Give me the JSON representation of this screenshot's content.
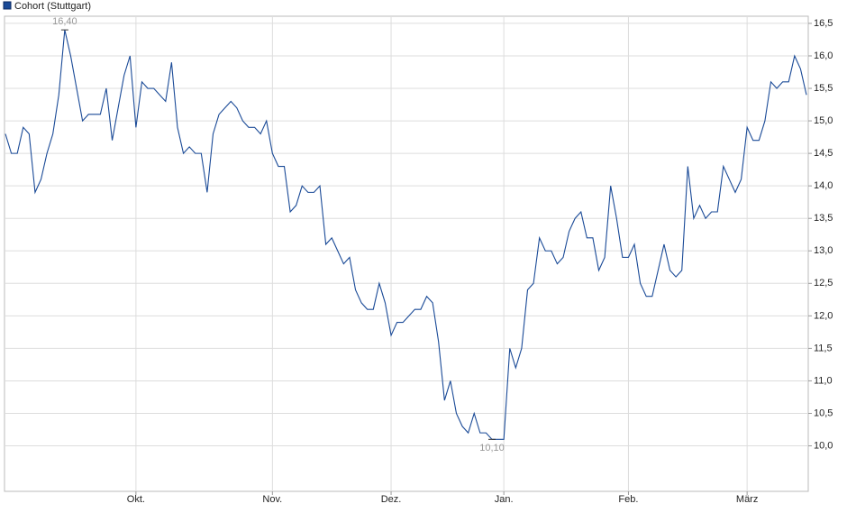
{
  "chart_data": {
    "type": "line",
    "categories": [
      null,
      null,
      null,
      null,
      null,
      null,
      null,
      null,
      null,
      null,
      null,
      null,
      null,
      null,
      null,
      null,
      null,
      null,
      null,
      null,
      null,
      null,
      "Okt.",
      null,
      null,
      null,
      null,
      null,
      null,
      null,
      null,
      null,
      null,
      null,
      null,
      null,
      null,
      null,
      null,
      null,
      null,
      null,
      null,
      null,
      null,
      "Nov.",
      null,
      null,
      null,
      null,
      null,
      null,
      null,
      null,
      null,
      null,
      null,
      null,
      null,
      null,
      null,
      null,
      null,
      null,
      null,
      "Dez.",
      null,
      null,
      null,
      null,
      null,
      null,
      null,
      null,
      null,
      null,
      null,
      null,
      null,
      null,
      null,
      null,
      null,
      null,
      "Jan.",
      null,
      null,
      null,
      null,
      null,
      null,
      null,
      null,
      null,
      null,
      null,
      null,
      null,
      null,
      null,
      null,
      null,
      null,
      null,
      null,
      "Feb.",
      null,
      null,
      null,
      null,
      null,
      null,
      null,
      null,
      null,
      null,
      null,
      null,
      null,
      null,
      null,
      null,
      null,
      null,
      null,
      "März",
      null,
      null,
      null,
      null,
      null,
      null,
      null,
      null,
      null,
      null
    ],
    "series": [
      {
        "name": "Cohort (Stuttgart)",
        "color": "#1a4a97",
        "values": [
          14.8,
          14.5,
          14.5,
          14.9,
          14.8,
          13.9,
          14.1,
          14.5,
          14.8,
          15.4,
          16.4,
          16.0,
          15.5,
          15.0,
          15.1,
          15.1,
          15.1,
          15.5,
          14.7,
          15.2,
          15.7,
          16.0,
          14.9,
          15.6,
          15.5,
          15.5,
          15.4,
          15.3,
          15.9,
          14.9,
          14.5,
          14.6,
          14.5,
          14.5,
          13.9,
          14.8,
          15.1,
          15.2,
          15.3,
          15.2,
          15.0,
          14.9,
          14.9,
          14.8,
          15.0,
          14.5,
          14.3,
          14.3,
          13.6,
          13.7,
          14.0,
          13.9,
          13.9,
          14.0,
          13.1,
          13.2,
          13.0,
          12.8,
          12.9,
          12.4,
          12.2,
          12.1,
          12.1,
          12.5,
          12.2,
          11.7,
          11.9,
          11.9,
          12.0,
          12.1,
          12.1,
          12.3,
          12.2,
          11.6,
          10.7,
          11.0,
          10.5,
          10.3,
          10.2,
          10.5,
          10.2,
          10.2,
          10.1,
          10.1,
          10.1,
          11.5,
          11.2,
          11.5,
          12.4,
          12.5,
          13.2,
          13.0,
          13.0,
          12.8,
          12.9,
          13.3,
          13.5,
          13.6,
          13.2,
          13.2,
          12.7,
          12.9,
          14.0,
          13.5,
          12.9,
          12.9,
          13.1,
          12.5,
          12.3,
          12.3,
          12.7,
          13.1,
          12.7,
          12.6,
          12.7,
          14.3,
          13.5,
          13.7,
          13.5,
          13.6,
          13.6,
          14.3,
          14.1,
          13.9,
          14.1,
          14.9,
          14.7,
          14.7,
          15.0,
          15.6,
          15.5,
          15.6,
          15.6,
          16.0,
          15.8,
          15.4
        ]
      }
    ],
    "annotations": [
      {
        "value": 16.4,
        "label": "16,40"
      },
      {
        "value": 10.1,
        "label": "10,10"
      }
    ],
    "ylim": [
      9.3,
      16.61
    ],
    "yticks": [
      {
        "value": 10.0,
        "label": "10,0"
      },
      {
        "value": 10.5,
        "label": "10,5"
      },
      {
        "value": 11.0,
        "label": "11,0"
      },
      {
        "value": 11.5,
        "label": "11,5"
      },
      {
        "value": 12.0,
        "label": "12,0"
      },
      {
        "value": 12.5,
        "label": "12,5"
      },
      {
        "value": 13.0,
        "label": "13,0"
      },
      {
        "value": 13.5,
        "label": "13,5"
      },
      {
        "value": 14.0,
        "label": "14,0"
      },
      {
        "value": 14.5,
        "label": "14,5"
      },
      {
        "value": 15.0,
        "label": "15,0"
      },
      {
        "value": 15.5,
        "label": "15,5"
      },
      {
        "value": 16.0,
        "label": "16,0"
      },
      {
        "value": 16.5,
        "label": "16,5"
      }
    ],
    "grid": true
  }
}
